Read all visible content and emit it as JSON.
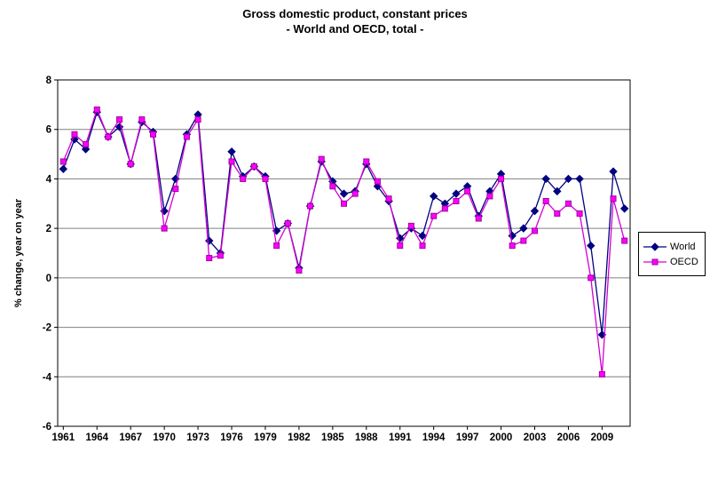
{
  "chart_data": {
    "type": "line",
    "title": "Gross domestic product, constant prices",
    "subtitle": "- World and OECD, total -",
    "ylabel": "% change, year on year",
    "xlabel": "",
    "ylim": [
      -6,
      8
    ],
    "yticks": [
      -6,
      -4,
      -2,
      0,
      2,
      4,
      6,
      8
    ],
    "x_label_every": 3,
    "grid": true,
    "legend_position": "right",
    "x": [
      1961,
      1962,
      1963,
      1964,
      1965,
      1966,
      1967,
      1968,
      1969,
      1970,
      1971,
      1972,
      1973,
      1974,
      1975,
      1976,
      1977,
      1978,
      1979,
      1980,
      1981,
      1982,
      1983,
      1984,
      1985,
      1986,
      1987,
      1988,
      1989,
      1990,
      1991,
      1992,
      1993,
      1994,
      1995,
      1996,
      1997,
      1998,
      1999,
      2000,
      2001,
      2002,
      2003,
      2004,
      2005,
      2006,
      2007,
      2008,
      2009,
      2010,
      2011
    ],
    "series": [
      {
        "name": "World",
        "marker": "diamond",
        "color": "#000080",
        "line_color": "#000080",
        "values": [
          4.4,
          5.6,
          5.2,
          6.7,
          5.7,
          6.1,
          4.6,
          6.3,
          5.9,
          2.7,
          4.0,
          5.8,
          6.6,
          1.5,
          1.0,
          5.1,
          4.1,
          4.5,
          4.1,
          1.9,
          2.2,
          0.4,
          2.9,
          4.7,
          3.9,
          3.4,
          3.5,
          4.6,
          3.7,
          3.1,
          1.6,
          2.0,
          1.7,
          3.3,
          3.0,
          3.4,
          3.7,
          2.5,
          3.5,
          4.2,
          1.7,
          2.0,
          2.7,
          4.0,
          3.5,
          4.0,
          4.0,
          1.3,
          -2.3,
          4.3,
          2.8
        ]
      },
      {
        "name": "OECD",
        "marker": "square",
        "color": "#FF00FF",
        "line_color": "#D400D4",
        "marker_border": "#A000A0",
        "values": [
          4.7,
          5.8,
          5.4,
          6.8,
          5.7,
          6.4,
          4.6,
          6.4,
          5.8,
          2.0,
          3.6,
          5.7,
          6.4,
          0.8,
          0.9,
          4.7,
          4.0,
          4.5,
          4.0,
          1.3,
          2.2,
          0.3,
          2.9,
          4.8,
          3.7,
          3.0,
          3.4,
          4.7,
          3.9,
          3.2,
          1.3,
          2.1,
          1.3,
          2.5,
          2.8,
          3.1,
          3.5,
          2.4,
          3.3,
          4.0,
          1.3,
          1.5,
          1.9,
          3.1,
          2.6,
          3.0,
          2.6,
          0.0,
          -3.9,
          3.2,
          1.5
        ]
      }
    ]
  }
}
